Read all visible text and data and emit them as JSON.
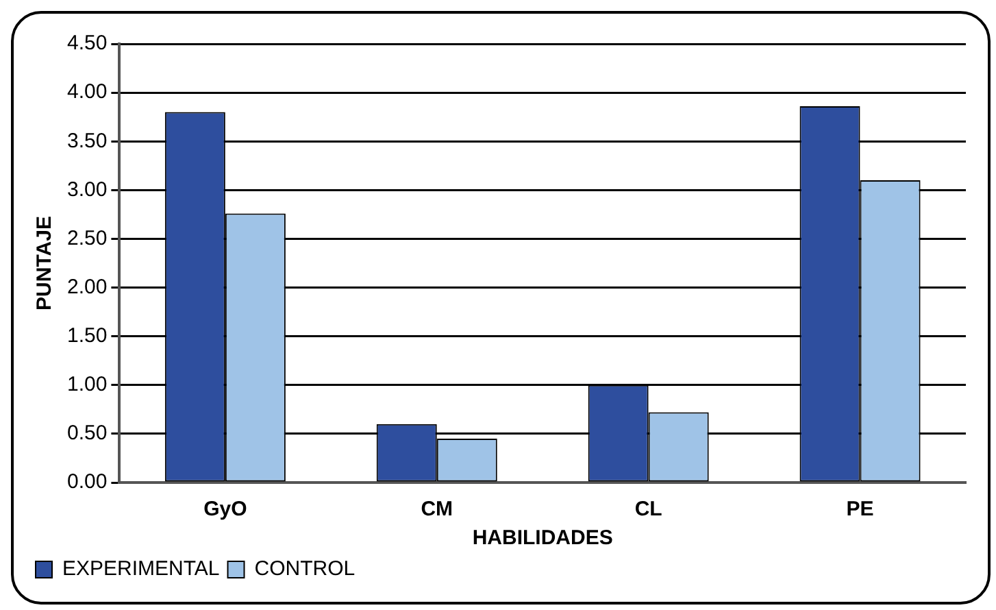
{
  "chart_data": {
    "type": "bar",
    "xlabel": "HABILIDADES",
    "ylabel": "PUNTAJE",
    "categories": [
      "GyO",
      "CM",
      "CL",
      "PE"
    ],
    "series": [
      {
        "name": "EXPERIMENTAL",
        "color": "#2e4e9e",
        "values": [
          3.8,
          0.6,
          1.0,
          3.86
        ]
      },
      {
        "name": "CONTROL",
        "color": "#9fc3e7",
        "values": [
          2.76,
          0.45,
          0.72,
          3.1
        ]
      }
    ],
    "ylim": [
      0,
      4.5
    ],
    "yticks": [
      {
        "value": 0,
        "label": "0.00"
      },
      {
        "value": 0.5,
        "label": "0.50"
      },
      {
        "value": 1,
        "label": "1.00"
      },
      {
        "value": 1.5,
        "label": "1.50"
      },
      {
        "value": 2,
        "label": "2.00"
      },
      {
        "value": 2.5,
        "label": "2.50"
      },
      {
        "value": 3,
        "label": "3.00"
      },
      {
        "value": 3.5,
        "label": "3.50"
      },
      {
        "value": 4,
        "label": "4.00"
      },
      {
        "value": 4.5,
        "label": "4.50"
      }
    ],
    "grid": "y",
    "legend": "bottom left"
  }
}
